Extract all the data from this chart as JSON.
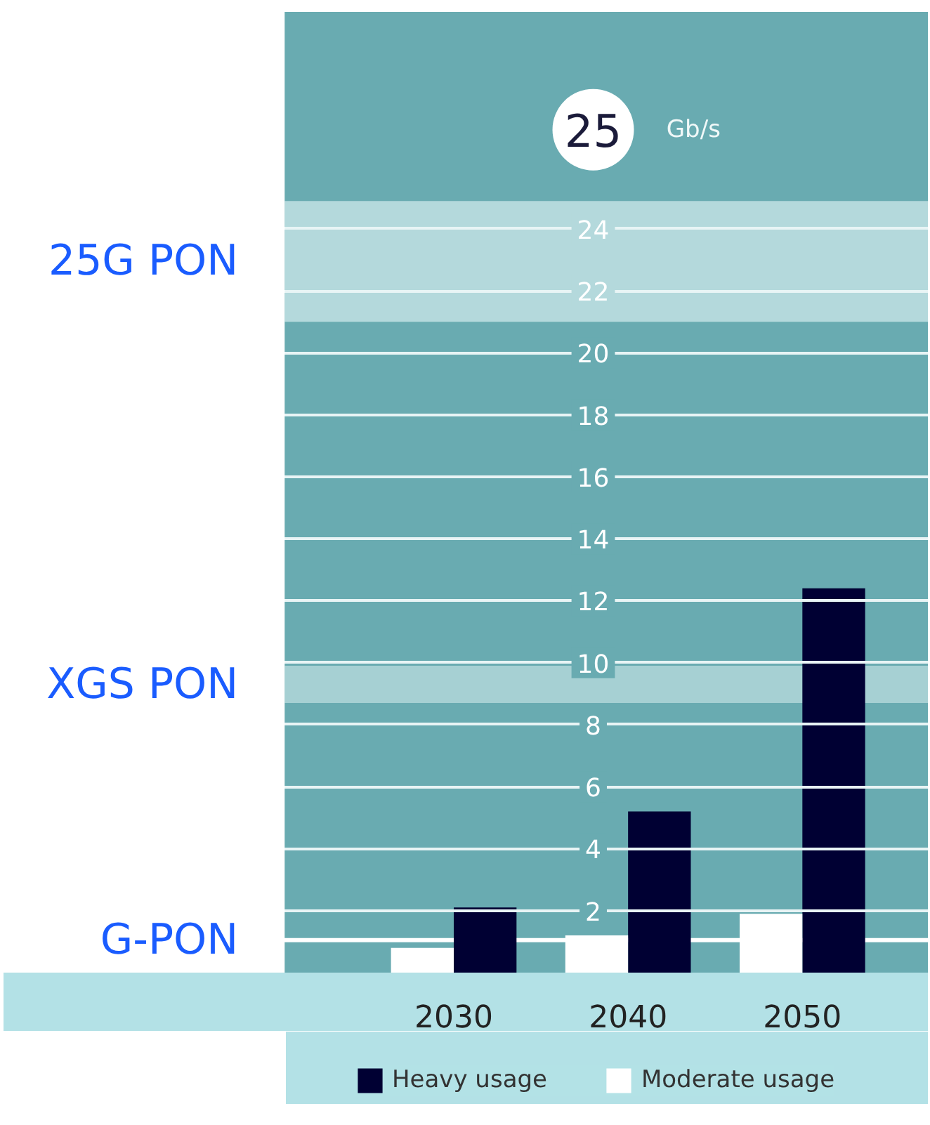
{
  "chart_data": {
    "type": "bar",
    "categories": [
      "2030",
      "2040",
      "2050"
    ],
    "series": [
      {
        "name": "Heavy usage",
        "color": "#000033",
        "values": [
          2.1,
          5.2,
          12.4
        ]
      },
      {
        "name": "Moderate usage",
        "color": "#ffffff",
        "values": [
          0.8,
          1.2,
          1.9
        ]
      }
    ],
    "ylabel": "Gb/s",
    "annotations": [
      "25"
    ],
    "ylim": [
      0,
      31
    ],
    "yticks": [
      2,
      4,
      6,
      8,
      10,
      12,
      14,
      16,
      18,
      20,
      22,
      24
    ],
    "bands": [
      {
        "axis": "y",
        "from": 21.0,
        "to": 24.9,
        "label": "25G PON",
        "color": "#b4d9dc"
      },
      {
        "axis": "y",
        "from": 8.7,
        "to": 9.9,
        "label": "XGS PON",
        "color": "#a6d0d3"
      }
    ],
    "ref_lines": [
      {
        "axis": "y",
        "value": 1.05,
        "label": "G-PON",
        "color": "#ffffff"
      }
    ],
    "grid": "y",
    "legend": "bottom"
  }
}
